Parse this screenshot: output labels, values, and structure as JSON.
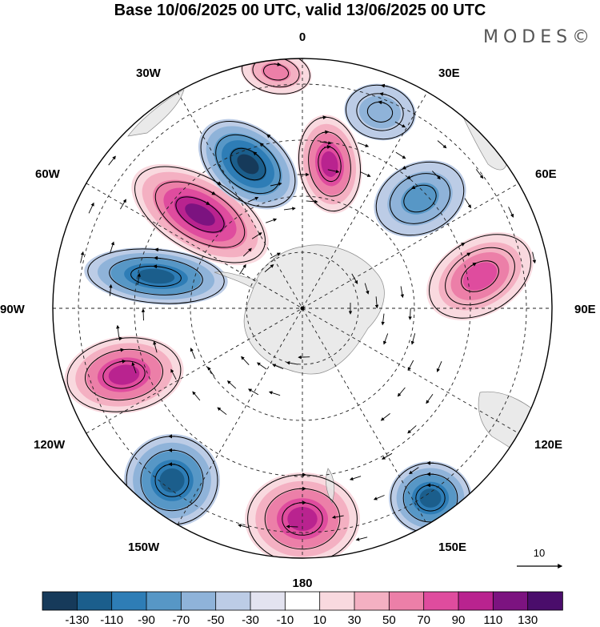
{
  "title": "Base 10/06/2025 00 UTC, valid 13/06/2025 00 UTC",
  "brand": "MODES©",
  "map": {
    "projection": "south polar stereographic",
    "field": "shaded anomaly with streamlines",
    "longitude_labels": [
      "0",
      "30E",
      "60E",
      "90E",
      "120E",
      "150E",
      "180",
      "150W",
      "120W",
      "90W",
      "60W",
      "30W"
    ],
    "features": [
      {
        "name": "anomaly-high-60W",
        "sign": "positive",
        "peak": 130
      },
      {
        "name": "anomaly-low-45W",
        "sign": "negative",
        "peak": -130
      },
      {
        "name": "anomaly-high-10E",
        "sign": "positive",
        "peak": 110
      },
      {
        "name": "anomaly-high-10W",
        "sign": "positive",
        "peak": 70
      },
      {
        "name": "anomaly-low-80W",
        "sign": "negative",
        "peak": -110
      },
      {
        "name": "anomaly-high-105W",
        "sign": "positive",
        "peak": 110
      },
      {
        "name": "anomaly-low-140W",
        "sign": "negative",
        "peak": -110
      },
      {
        "name": "anomaly-high-180",
        "sign": "positive",
        "peak": 110
      },
      {
        "name": "anomaly-low-150E",
        "sign": "negative",
        "peak": -110
      },
      {
        "name": "anomaly-high-75E",
        "sign": "positive",
        "peak": 90
      },
      {
        "name": "anomaly-low-45E",
        "sign": "negative",
        "peak": -70
      },
      {
        "name": "anomaly-low-20E",
        "sign": "negative",
        "peak": -50
      }
    ]
  },
  "vector_key": {
    "label": "10"
  },
  "colorbar": {
    "labels": [
      "-130",
      "-110",
      "-90",
      "-70",
      "-50",
      "-30",
      "-10",
      "10",
      "30",
      "50",
      "70",
      "90",
      "110",
      "130"
    ],
    "colors": [
      "#163a5a",
      "#1b5e8c",
      "#2e7db6",
      "#5797c6",
      "#8fb3d9",
      "#bccce6",
      "#e3e3f0",
      "#ffffff",
      "#f9d9df",
      "#f4b0c2",
      "#ec7fa8",
      "#df4c9e",
      "#b9238f",
      "#7c1380",
      "#4a0d6b"
    ]
  }
}
